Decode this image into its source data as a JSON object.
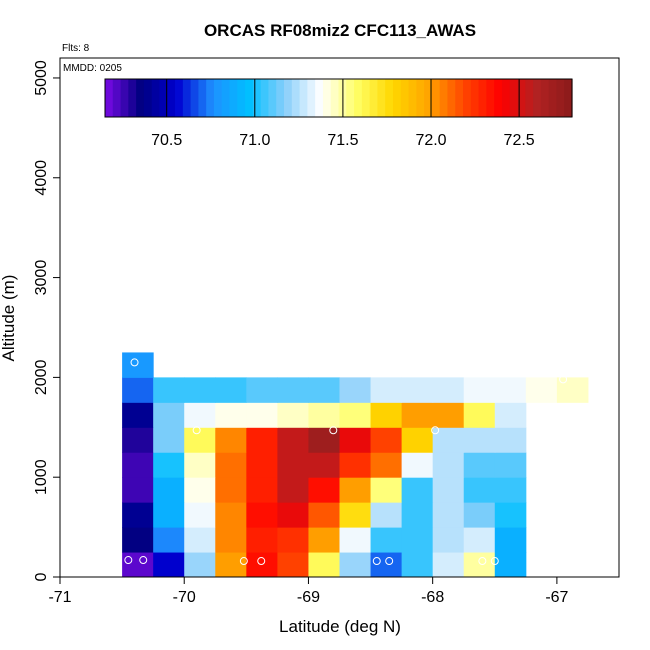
{
  "chart_data": {
    "type": "heatmap",
    "title": "ORCAS RF08miz2 CFC113_AWAS",
    "annotations": {
      "flights": "Flts: 8",
      "date": "MMDD: 0205"
    },
    "xlabel": "Latitude (deg N)",
    "ylabel": "Altitude (m)",
    "xlim": [
      -71,
      -66.5
    ],
    "ylim": [
      0,
      5200
    ],
    "x_ticks": [
      -71,
      -70,
      -69,
      -68,
      -67
    ],
    "y_ticks": [
      0,
      1000,
      2000,
      3000,
      4000,
      5000
    ],
    "colorbar": {
      "range": [
        70.15,
        72.8
      ],
      "ticks": [
        70.5,
        71.0,
        71.5,
        72.0,
        72.5
      ],
      "tick_labels": [
        "70.5",
        "71.0",
        "71.5",
        "72.0",
        "72.5"
      ],
      "palette": [
        "#7a0ae6",
        "#000080",
        "#0000d0",
        "#1e90ff",
        "#00bfff",
        "#87cefa",
        "#ffffff",
        "#ffff66",
        "#ffd700",
        "#ffa500",
        "#ff4500",
        "#ff0000",
        "#b22222",
        "#8b1a1a"
      ]
    },
    "grid": {
      "lat_start": -70.5,
      "lat_step": 0.25,
      "alt_start": 0,
      "alt_step": 250
    },
    "cells": [
      [
        -70.5,
        0,
        70.2
      ],
      [
        -70.25,
        0,
        70.55
      ],
      [
        -70.0,
        0,
        71.2
      ],
      [
        -69.75,
        0,
        72.0
      ],
      [
        -69.5,
        0,
        72.35
      ],
      [
        -69.25,
        0,
        72.2
      ],
      [
        -69.0,
        0,
        71.6
      ],
      [
        -68.75,
        0,
        71.2
      ],
      [
        -68.5,
        0,
        70.7
      ],
      [
        -68.25,
        0,
        71.05
      ],
      [
        -68.0,
        0,
        71.3
      ],
      [
        -67.75,
        0,
        71.5
      ],
      [
        -67.5,
        0,
        70.9
      ],
      [
        -70.5,
        250,
        70.35
      ],
      [
        -70.25,
        250,
        70.75
      ],
      [
        -70.0,
        250,
        71.3
      ],
      [
        -69.75,
        250,
        72.05
      ],
      [
        -69.5,
        250,
        72.3
      ],
      [
        -69.25,
        250,
        72.25
      ],
      [
        -69.0,
        250,
        72.0
      ],
      [
        -68.75,
        250,
        71.35
      ],
      [
        -68.5,
        250,
        71.05
      ],
      [
        -68.25,
        250,
        71.05
      ],
      [
        -68.0,
        250,
        71.25
      ],
      [
        -67.75,
        250,
        71.3
      ],
      [
        -67.5,
        250,
        70.9
      ],
      [
        -70.5,
        500,
        70.4
      ],
      [
        -70.25,
        500,
        70.9
      ],
      [
        -70.0,
        500,
        71.35
      ],
      [
        -69.75,
        500,
        72.05
      ],
      [
        -69.5,
        500,
        72.35
      ],
      [
        -69.25,
        500,
        72.45
      ],
      [
        -69.0,
        500,
        72.15
      ],
      [
        -68.75,
        500,
        71.75
      ],
      [
        -68.5,
        500,
        71.25
      ],
      [
        -68.25,
        500,
        71.05
      ],
      [
        -68.0,
        500,
        71.25
      ],
      [
        -67.75,
        500,
        71.15
      ],
      [
        -67.5,
        500,
        71.0
      ],
      [
        -70.5,
        750,
        70.25
      ],
      [
        -70.25,
        750,
        70.9
      ],
      [
        -70.0,
        750,
        71.4
      ],
      [
        -69.75,
        750,
        72.1
      ],
      [
        -69.5,
        750,
        72.3
      ],
      [
        -69.25,
        750,
        72.55
      ],
      [
        -69.0,
        750,
        72.35
      ],
      [
        -68.75,
        750,
        72.0
      ],
      [
        -68.5,
        750,
        71.55
      ],
      [
        -68.25,
        750,
        71.05
      ],
      [
        -68.0,
        750,
        71.25
      ],
      [
        -67.75,
        750,
        71.05
      ],
      [
        -67.5,
        750,
        71.05
      ],
      [
        -70.5,
        1000,
        70.25
      ],
      [
        -70.25,
        1000,
        71.0
      ],
      [
        -70.0,
        1000,
        71.45
      ],
      [
        -69.75,
        1000,
        72.1
      ],
      [
        -69.5,
        1000,
        72.3
      ],
      [
        -69.25,
        1000,
        72.55
      ],
      [
        -69.0,
        1000,
        72.55
      ],
      [
        -68.75,
        1000,
        72.25
      ],
      [
        -68.5,
        1000,
        72.1
      ],
      [
        -68.25,
        1000,
        71.35
      ],
      [
        -68.0,
        1000,
        71.25
      ],
      [
        -67.75,
        1000,
        71.1
      ],
      [
        -67.5,
        1000,
        71.1
      ],
      [
        -70.5,
        1250,
        70.3
      ],
      [
        -70.25,
        1250,
        71.15
      ],
      [
        -70.0,
        1250,
        71.6
      ],
      [
        -69.75,
        1250,
        72.05
      ],
      [
        -69.5,
        1250,
        72.3
      ],
      [
        -69.25,
        1250,
        72.55
      ],
      [
        -69.0,
        1250,
        72.7
      ],
      [
        -68.75,
        1250,
        72.45
      ],
      [
        -68.5,
        1250,
        72.2
      ],
      [
        -68.25,
        1250,
        71.8
      ],
      [
        -68.0,
        1250,
        71.25
      ],
      [
        -67.75,
        1250,
        71.25
      ],
      [
        -67.5,
        1250,
        71.25
      ],
      [
        -70.5,
        1500,
        70.4
      ],
      [
        -70.25,
        1500,
        71.15
      ],
      [
        -70.0,
        1500,
        71.35
      ],
      [
        -69.75,
        1500,
        71.4
      ],
      [
        -69.5,
        1500,
        71.4
      ],
      [
        -69.25,
        1500,
        71.45
      ],
      [
        -69.0,
        1500,
        71.5
      ],
      [
        -68.75,
        1500,
        71.55
      ],
      [
        -68.5,
        1500,
        71.8
      ],
      [
        -68.25,
        1500,
        72.0
      ],
      [
        -68.0,
        1500,
        72.0
      ],
      [
        -67.75,
        1500,
        71.6
      ],
      [
        -67.5,
        1500,
        71.3
      ],
      [
        -70.5,
        1750,
        70.7
      ],
      [
        -70.25,
        1750,
        71.05
      ],
      [
        -70.0,
        1750,
        71.05
      ],
      [
        -69.75,
        1750,
        71.05
      ],
      [
        -69.5,
        1750,
        71.1
      ],
      [
        -69.25,
        1750,
        71.1
      ],
      [
        -69.0,
        1750,
        71.1
      ],
      [
        -68.75,
        1750,
        71.2
      ],
      [
        -68.5,
        1750,
        71.3
      ],
      [
        -68.25,
        1750,
        71.3
      ],
      [
        -68.0,
        1750,
        71.3
      ],
      [
        -67.75,
        1750,
        71.35
      ],
      [
        -67.5,
        1750,
        71.35
      ],
      [
        -67.25,
        1750,
        71.4
      ],
      [
        -67.0,
        1750,
        71.45
      ],
      [
        -70.5,
        2000,
        70.8
      ]
    ],
    "sample_points": [
      [
        -70.45,
        170
      ],
      [
        -70.33,
        170
      ],
      [
        -70.4,
        2150
      ],
      [
        -69.52,
        160
      ],
      [
        -69.38,
        160
      ],
      [
        -68.45,
        160
      ],
      [
        -68.35,
        160
      ],
      [
        -67.6,
        160
      ],
      [
        -67.5,
        160
      ],
      [
        -69.9,
        1470
      ],
      [
        -68.8,
        1470
      ],
      [
        -67.98,
        1470
      ],
      [
        -66.95,
        1980
      ]
    ]
  }
}
